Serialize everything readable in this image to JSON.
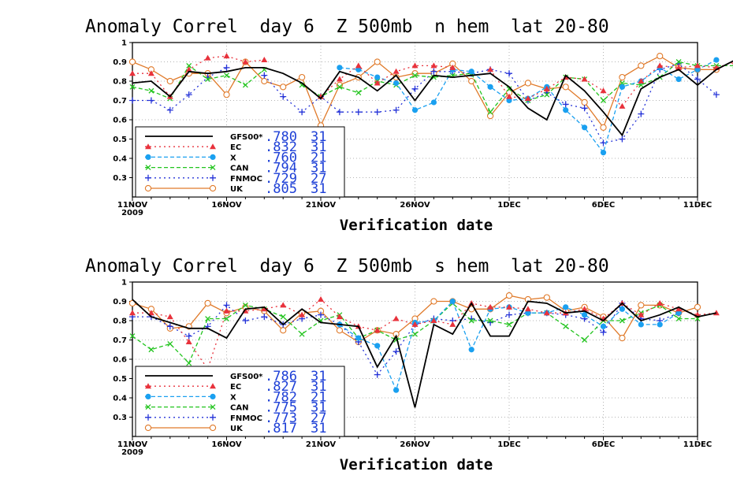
{
  "chart_data": [
    {
      "type": "line",
      "title": "Anomaly Correl  day 6  Z 500mb  n hem  lat 20-80",
      "xlabel": "Verification date",
      "ylabel": "",
      "ylim": [
        0.2,
        1.0
      ],
      "xlim": [
        0,
        30
      ],
      "grid": true,
      "yticks": [
        "0.3",
        "0.4",
        "0.5",
        "0.6",
        "0.7",
        "0.8",
        "0.9",
        "1"
      ],
      "xticks": [
        {
          "x": 0,
          "label": "11NOV",
          "sub": "2009"
        },
        {
          "x": 5,
          "label": "16NOV"
        },
        {
          "x": 10,
          "label": "21NOV"
        },
        {
          "x": 15,
          "label": "26NOV"
        },
        {
          "x": 20,
          "label": "1DEC"
        },
        {
          "x": 25,
          "label": "6DEC"
        },
        {
          "x": 30,
          "label": "11DEC"
        }
      ],
      "legend_placement": "bottom-left",
      "series": [
        {
          "name": "GFS00*",
          "score": ".780",
          "count": "31",
          "color": "#000000",
          "line": "solid",
          "marker": "none",
          "values": [
            0.79,
            0.8,
            0.72,
            0.85,
            0.84,
            0.85,
            0.87,
            0.87,
            0.84,
            0.79,
            0.71,
            0.85,
            0.82,
            0.75,
            0.83,
            0.7,
            0.83,
            0.82,
            0.83,
            0.84,
            0.77,
            0.66,
            0.6,
            0.83,
            0.75,
            0.64,
            0.52,
            0.76,
            0.82,
            0.86,
            0.78,
            0.86,
            0.91
          ]
        },
        {
          "name": "EC",
          "score": ".832",
          "count": "31",
          "color": "#e8323c",
          "line": "dotted",
          "marker": "triangle",
          "values": [
            0.84,
            0.84,
            0.72,
            0.86,
            0.92,
            0.93,
            0.9,
            0.91,
            null,
            null,
            0.72,
            0.81,
            0.88,
            0.79,
            0.85,
            0.88,
            0.88,
            0.87,
            null,
            0.86,
            0.72,
            0.71,
            0.76,
            0.82,
            0.81,
            0.75,
            0.67,
            0.8,
            0.88,
            0.87,
            0.88,
            0.87,
            0.9
          ]
        },
        {
          "name": "X",
          "score": ".760",
          "count": "21",
          "color": "#1aa0f0",
          "line": "dashed",
          "marker": "circle",
          "values": [
            null,
            null,
            null,
            null,
            null,
            null,
            null,
            null,
            null,
            null,
            null,
            0.87,
            0.86,
            0.82,
            0.79,
            0.65,
            0.69,
            0.86,
            0.85,
            0.77,
            0.7,
            0.71,
            0.77,
            0.65,
            0.56,
            0.43,
            0.77,
            0.8,
            0.87,
            0.81,
            0.86,
            0.91
          ]
        },
        {
          "name": "CAN",
          "score": ".794",
          "count": "31",
          "color": "#22c41e",
          "line": "dashed",
          "marker": "x",
          "values": [
            0.77,
            0.75,
            0.71,
            0.88,
            0.81,
            0.83,
            0.78,
            0.86,
            null,
            0.78,
            0.72,
            0.77,
            0.74,
            0.8,
            0.78,
            0.83,
            0.82,
            0.83,
            0.84,
            0.64,
            0.76,
            0.7,
            0.73,
            0.82,
            0.81,
            0.7,
            0.79,
            0.78,
            0.82,
            0.9,
            0.88,
            0.88,
            0.88
          ]
        },
        {
          "name": "FNMOC",
          "score": ".729",
          "count": "27",
          "color": "#2533d8",
          "line": "dotted",
          "marker": "plus",
          "values": [
            0.7,
            0.7,
            0.65,
            0.73,
            0.82,
            0.87,
            null,
            0.83,
            0.72,
            0.64,
            0.72,
            0.64,
            0.64,
            0.64,
            0.65,
            0.76,
            0.85,
            0.85,
            0.84,
            0.86,
            0.84,
            0.7,
            0.74,
            0.68,
            0.66,
            0.48,
            0.5,
            0.63,
            0.86,
            0.89,
            0.81,
            0.73
          ]
        },
        {
          "name": "UK",
          "score": ".805",
          "count": "31",
          "color": "#e07a2a",
          "line": "solid",
          "marker": "ocircle",
          "values": [
            0.9,
            0.86,
            0.8,
            0.84,
            0.84,
            0.73,
            0.9,
            0.8,
            0.77,
            0.82,
            0.57,
            0.78,
            0.82,
            0.9,
            0.82,
            0.84,
            0.84,
            0.89,
            0.8,
            0.62,
            0.74,
            0.79,
            0.76,
            0.77,
            0.69,
            0.56,
            0.82,
            0.88,
            0.93,
            0.87,
            0.86,
            0.86
          ]
        }
      ]
    },
    {
      "type": "line",
      "title": "Anomaly Correl  day 6  Z 500mb  s hem  lat 20-80",
      "xlabel": "Verification date",
      "ylabel": "",
      "ylim": [
        0.2,
        1.0
      ],
      "xlim": [
        0,
        30
      ],
      "grid": true,
      "yticks": [
        "0.3",
        "0.4",
        "0.5",
        "0.6",
        "0.7",
        "0.8",
        "0.9",
        "1"
      ],
      "xticks": [
        {
          "x": 0,
          "label": "11NOV",
          "sub": "2009"
        },
        {
          "x": 5,
          "label": "16NOV"
        },
        {
          "x": 10,
          "label": "21NOV"
        },
        {
          "x": 15,
          "label": "26NOV"
        },
        {
          "x": 20,
          "label": "1DEC"
        },
        {
          "x": 25,
          "label": "6DEC"
        },
        {
          "x": 30,
          "label": "11DEC"
        }
      ],
      "legend_placement": "bottom-left",
      "series": [
        {
          "name": "GFS00*",
          "score": ".786",
          "count": "31",
          "color": "#000000",
          "line": "solid",
          "marker": "none",
          "values": [
            0.91,
            0.82,
            0.79,
            0.76,
            0.76,
            0.71,
            0.86,
            0.87,
            0.78,
            0.86,
            0.79,
            0.78,
            0.77,
            0.56,
            0.72,
            0.35,
            0.78,
            0.73,
            0.89,
            0.72,
            0.72,
            0.9,
            0.89,
            0.84,
            0.85,
            0.8,
            0.89,
            0.8,
            0.83,
            0.87,
            0.82,
            0.84
          ]
        },
        {
          "name": "EC",
          "score": ".827",
          "count": "31",
          "color": "#e8323c",
          "line": "dotted",
          "marker": "triangle",
          "values": [
            0.84,
            0.84,
            0.82,
            0.69,
            0.55,
            0.85,
            0.85,
            0.86,
            0.88,
            0.83,
            0.91,
            0.82,
            0.77,
            0.75,
            0.81,
            0.78,
            0.8,
            0.78,
            0.89,
            0.87,
            0.87,
            0.86,
            0.84,
            0.84,
            0.86,
            0.81,
            0.89,
            0.83,
            0.89,
            0.86,
            0.83,
            0.84
          ]
        },
        {
          "name": "X",
          "score": ".782",
          "count": "21",
          "color": "#1aa0f0",
          "line": "dashed",
          "marker": "circle",
          "values": [
            null,
            null,
            null,
            null,
            null,
            null,
            null,
            null,
            null,
            null,
            null,
            0.78,
            0.71,
            0.67,
            0.44,
            0.79,
            0.8,
            0.9,
            0.65,
            0.86,
            0.87,
            0.84,
            0.84,
            0.87,
            0.83,
            0.77,
            0.86,
            0.78,
            0.78,
            0.84
          ]
        },
        {
          "name": "CAN",
          "score": ".775",
          "count": "31",
          "color": "#22c41e",
          "line": "dashed",
          "marker": "x",
          "values": [
            0.72,
            0.65,
            0.68,
            0.58,
            0.81,
            0.81,
            0.88,
            0.86,
            0.82,
            0.73,
            0.8,
            0.83,
            0.71,
            0.75,
            0.7,
            0.73,
            0.8,
            0.89,
            0.8,
            0.8,
            0.78,
            0.84,
            0.84,
            0.77,
            0.7,
            0.8,
            0.8,
            0.84,
            0.88,
            0.81,
            0.81
          ]
        },
        {
          "name": "FNMOC",
          "score": ".773",
          "count": "27",
          "color": "#2533d8",
          "line": "dotted",
          "marker": "plus",
          "values": [
            0.82,
            0.82,
            0.77,
            0.72,
            0.77,
            0.88,
            0.8,
            0.82,
            0.78,
            0.81,
            0.83,
            0.78,
            0.69,
            0.52,
            0.64,
            0.78,
            0.81,
            0.8,
            0.81,
            0.79,
            0.83,
            0.84,
            0.84,
            0.83,
            0.81,
            0.74,
            0.89,
            0.81,
            0.8,
            0.84
          ]
        },
        {
          "name": "UK",
          "score": ".817",
          "count": "31",
          "color": "#e07a2a",
          "line": "solid",
          "marker": "ocircle",
          "values": [
            0.89,
            0.86,
            0.76,
            0.77,
            0.89,
            0.84,
            0.87,
            0.85,
            0.75,
            0.84,
            0.85,
            0.75,
            0.69,
            0.75,
            0.73,
            0.81,
            0.9,
            0.9,
            0.86,
            0.86,
            0.93,
            0.91,
            0.92,
            0.85,
            0.87,
            0.82,
            0.71,
            0.88,
            0.88,
            0.84,
            0.87
          ]
        }
      ]
    }
  ]
}
